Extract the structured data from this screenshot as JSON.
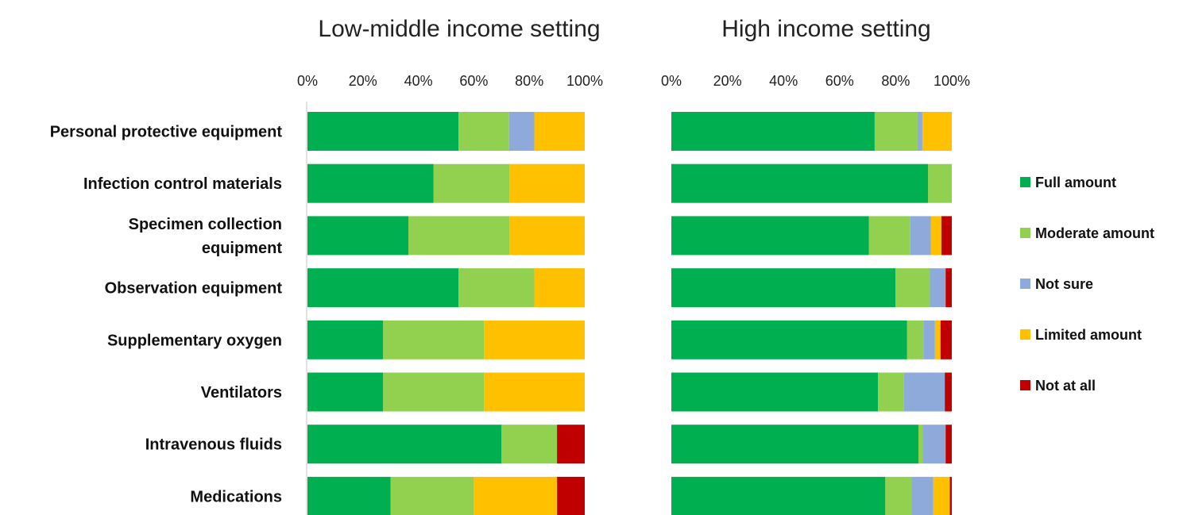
{
  "chart_data": [
    {
      "type": "bar",
      "orientation": "horizontal",
      "stacked": true,
      "title": "Low-middle income setting",
      "categories": [
        "Personal protective equipment",
        "Infection control materials",
        "Specimen collection equipment",
        "Observation equipment",
        "Supplementary oxygen",
        "Ventilators",
        "Intravenous fluids",
        "Medications"
      ],
      "category_labels": [
        [
          "Personal protective equipment"
        ],
        [
          "Infection control materials"
        ],
        [
          "Specimen collection",
          "equipment"
        ],
        [
          "Observation equipment"
        ],
        [
          "Supplementary oxygen"
        ],
        [
          "Ventilators"
        ],
        [
          "Intravenous fluids"
        ],
        [
          "Medications"
        ]
      ],
      "series": [
        {
          "name": "Full amount",
          "values": [
            54.5,
            45.5,
            36.4,
            54.5,
            27.3,
            27.3,
            70,
            30
          ]
        },
        {
          "name": "Moderate amount",
          "values": [
            18.2,
            27.3,
            36.4,
            27.3,
            36.4,
            36.4,
            20,
            30
          ]
        },
        {
          "name": "Not sure",
          "values": [
            9.1,
            0,
            0,
            0,
            0,
            0,
            0,
            0
          ]
        },
        {
          "name": "Limited amount",
          "values": [
            18.2,
            27.2,
            27.2,
            18.2,
            36.3,
            36.3,
            0,
            30
          ]
        },
        {
          "name": "Not at all",
          "values": [
            0,
            0,
            0,
            0,
            0,
            0,
            10,
            10
          ]
        }
      ],
      "xlim": [
        0,
        100
      ],
      "xticks": [
        "0%",
        "20%",
        "40%",
        "60%",
        "80%",
        "100%"
      ],
      "xlabel": "",
      "ylabel": "",
      "grid": false
    },
    {
      "type": "bar",
      "orientation": "horizontal",
      "stacked": true,
      "title": "High income setting",
      "categories": [
        "Personal protective equipment",
        "Infection control materials",
        "Specimen collection equipment",
        "Observation equipment",
        "Supplementary oxygen",
        "Ventilators",
        "Intravenous fluids",
        "Medications"
      ],
      "series": [
        {
          "name": "Full amount",
          "values": [
            72.5,
            91.5,
            70.4,
            79.9,
            84,
            73.7,
            88.1,
            76.3
          ]
        },
        {
          "name": "Moderate amount",
          "values": [
            15.3,
            8.5,
            14.8,
            12.3,
            5.9,
            9.2,
            1.7,
            9.4
          ]
        },
        {
          "name": "Not sure",
          "values": [
            1.7,
            0,
            7.4,
            5.6,
            4.1,
            14.6,
            8,
            7.7
          ]
        },
        {
          "name": "Limited amount",
          "values": [
            10.5,
            0,
            3.7,
            0,
            2,
            0,
            0,
            5.9
          ]
        },
        {
          "name": "Not at all",
          "values": [
            0,
            0,
            3.7,
            2.2,
            4,
            2.5,
            2.2,
            0.7
          ]
        }
      ],
      "xlim": [
        0,
        100
      ],
      "xticks": [
        "0%",
        "20%",
        "40%",
        "60%",
        "80%",
        "100%"
      ],
      "xlabel": "",
      "ylabel": "",
      "grid": false
    }
  ],
  "legend": {
    "placement": "right",
    "items": [
      {
        "name": "Full amount",
        "color": "#00b050"
      },
      {
        "name": "Moderate amount",
        "color": "#92d050"
      },
      {
        "name": "Not sure",
        "color": "#8eaadb"
      },
      {
        "name": "Limited amount",
        "color": "#ffc000"
      },
      {
        "name": "Not at all",
        "color": "#c00000"
      }
    ]
  },
  "colors": {
    "Full amount": "#00b050",
    "Moderate amount": "#92d050",
    "Not sure": "#8eaadb",
    "Limited amount": "#ffc000",
    "Not at all": "#c00000"
  }
}
